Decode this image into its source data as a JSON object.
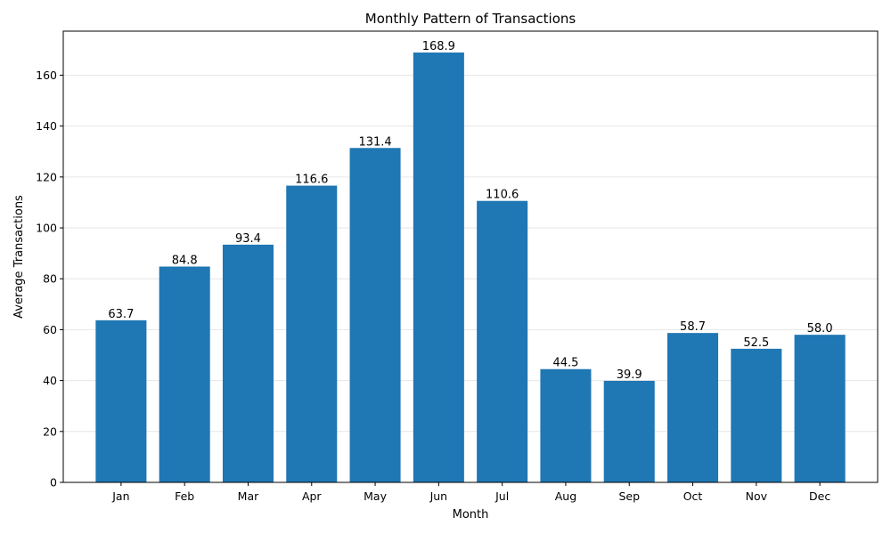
{
  "chart_data": {
    "type": "bar",
    "title": "Monthly Pattern of Transactions",
    "xlabel": "Month",
    "ylabel": "Average Transactions",
    "categories": [
      "Jan",
      "Feb",
      "Mar",
      "Apr",
      "May",
      "Jun",
      "Jul",
      "Aug",
      "Sep",
      "Oct",
      "Nov",
      "Dec"
    ],
    "values": [
      63.7,
      84.8,
      93.4,
      116.6,
      131.4,
      168.9,
      110.6,
      44.5,
      39.9,
      58.7,
      52.5,
      58.0
    ],
    "value_labels": [
      "63.7",
      "84.8",
      "93.4",
      "116.6",
      "131.4",
      "168.9",
      "110.6",
      "44.5",
      "39.9",
      "58.7",
      "52.5",
      "58.0"
    ],
    "yticks": [
      0,
      20,
      40,
      60,
      80,
      100,
      120,
      140,
      160
    ],
    "ylim": [
      0,
      177.3
    ],
    "grid": "horizontal",
    "bar_color": "#1f77b4",
    "grid_color": "#e6e6e6"
  }
}
